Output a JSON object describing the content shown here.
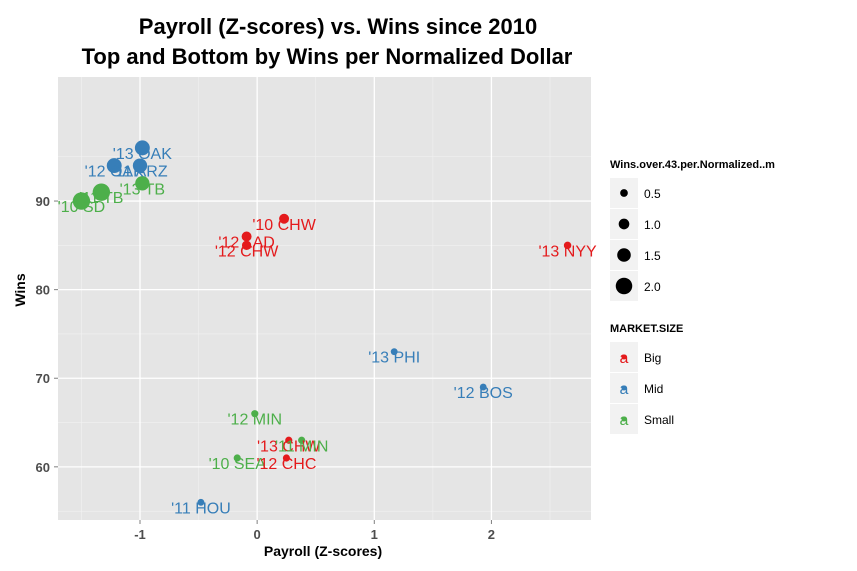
{
  "chart_data": {
    "type": "scatter",
    "title_line1": "Payroll (Z-scores) vs. Wins since 2010",
    "title_line2": "Top and Bottom by Wins per Normalized Dollar",
    "xlabel": "Payroll (Z-scores)",
    "ylabel": "Wins",
    "xlim": [
      -1.7,
      2.85
    ],
    "ylim": [
      54,
      104
    ],
    "xticks": [
      -1,
      0,
      1,
      2
    ],
    "yticks": [
      60,
      70,
      80,
      90
    ],
    "grid": true,
    "colors": {
      "Big": "#e41a1c",
      "Mid": "#377eb8",
      "Small": "#4daf4a"
    },
    "points": [
      {
        "label": "'13 OAK",
        "x": -0.98,
        "y": 96,
        "size": 1.6,
        "market": "Mid"
      },
      {
        "label": "'12 OAK",
        "x": -1.22,
        "y": 94,
        "size": 1.6,
        "market": "Mid"
      },
      {
        "label": "'11 ARZ",
        "x": -1.0,
        "y": 94,
        "size": 1.5,
        "market": "Mid"
      },
      {
        "label": "'13 TB",
        "x": -0.98,
        "y": 92,
        "size": 1.5,
        "market": "Small"
      },
      {
        "label": "'11 TB",
        "x": -1.33,
        "y": 91,
        "size": 2.0,
        "market": "Small"
      },
      {
        "label": "'10 SD",
        "x": -1.5,
        "y": 90,
        "size": 2.0,
        "market": "Small"
      },
      {
        "label": "'10 CHW",
        "x": 0.23,
        "y": 88,
        "size": 0.8,
        "market": "Big"
      },
      {
        "label": "'12 LAD",
        "x": -0.09,
        "y": 86,
        "size": 0.8,
        "market": "Big"
      },
      {
        "label": "'12 CHW",
        "x": -0.09,
        "y": 85,
        "size": 0.7,
        "market": "Big"
      },
      {
        "label": "'13 NYY",
        "x": 2.65,
        "y": 85,
        "size": 0.4,
        "market": "Big"
      },
      {
        "label": "'13 PHI",
        "x": 1.17,
        "y": 73,
        "size": 0.3,
        "market": "Mid"
      },
      {
        "label": "'12 BOS",
        "x": 1.93,
        "y": 69,
        "size": 0.3,
        "market": "Mid"
      },
      {
        "label": "'12 MIN",
        "x": -0.02,
        "y": 66,
        "size": 0.35,
        "market": "Small"
      },
      {
        "label": "'13 CHW",
        "x": 0.27,
        "y": 63,
        "size": 0.35,
        "market": "Big"
      },
      {
        "label": "'11 MIN",
        "x": 0.38,
        "y": 63,
        "size": 0.35,
        "market": "Small"
      },
      {
        "label": "'10 SEA",
        "x": -0.17,
        "y": 61,
        "size": 0.35,
        "market": "Small"
      },
      {
        "label": "'12 CHC",
        "x": 0.25,
        "y": 61,
        "size": 0.35,
        "market": "Big"
      },
      {
        "label": "'11 HOU",
        "x": -0.48,
        "y": 56,
        "size": 0.3,
        "market": "Mid"
      }
    ],
    "legend_size": {
      "title": "Wins.over.43.per.Normalized..m",
      "entries": [
        {
          "label": "0.5",
          "size": 0.5
        },
        {
          "label": "1.0",
          "size": 1.0
        },
        {
          "label": "1.5",
          "size": 1.5
        },
        {
          "label": "2.0",
          "size": 2.0
        }
      ]
    },
    "legend_color": {
      "title": "MARKET.SIZE",
      "glyph": "a",
      "entries": [
        {
          "label": "Big",
          "key": "Big"
        },
        {
          "label": "Mid",
          "key": "Mid"
        },
        {
          "label": "Small",
          "key": "Small"
        }
      ]
    }
  }
}
